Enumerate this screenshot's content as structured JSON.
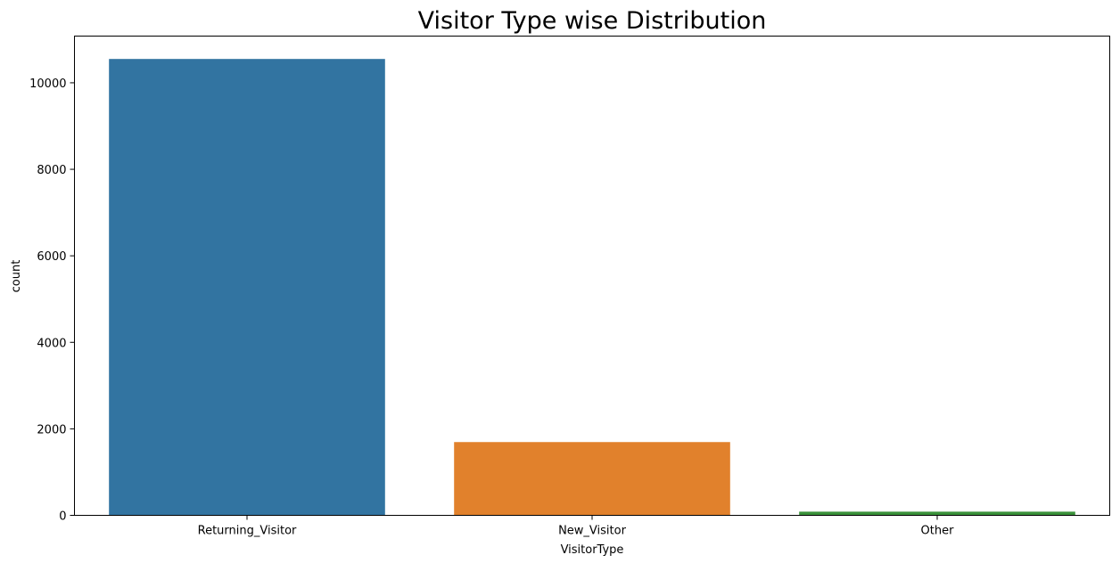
{
  "chart_data": {
    "type": "bar",
    "title": "Visitor Type wise Distribution",
    "xlabel": "VisitorType",
    "ylabel": "count",
    "categories": [
      "Returning_Visitor",
      "New_Visitor",
      "Other"
    ],
    "values": [
      10551,
      1694,
      85
    ],
    "colors": [
      "#3274a1",
      "#e1812c",
      "#3a923a"
    ],
    "ylim": [
      0,
      11080
    ],
    "yticks": [
      0,
      2000,
      4000,
      6000,
      8000,
      10000
    ],
    "grid": false,
    "legend": "none"
  }
}
